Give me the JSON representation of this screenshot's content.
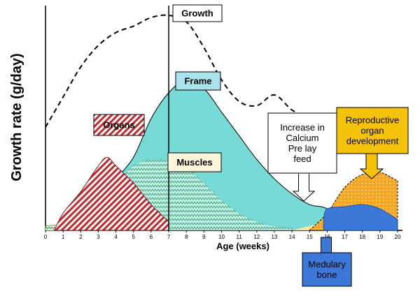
{
  "chart_data": {
    "type": "area",
    "title": "",
    "xlabel": "Age (weeks)",
    "ylabel": "Growth rate (g/day)",
    "x_ticks": [
      "0",
      "1",
      "2",
      "3",
      "4",
      "5",
      "6",
      "7",
      "8",
      "9",
      "10",
      "11",
      "12",
      "13",
      "14",
      "15",
      "16",
      "17",
      "18",
      "19",
      "20"
    ],
    "grid": false,
    "series": [
      {
        "name": "Growth",
        "style": "dashed-line",
        "color": "#000000",
        "points": [
          [
            0,
            0.48
          ],
          [
            1,
            0.62
          ],
          [
            2,
            0.76
          ],
          [
            3,
            0.86
          ],
          [
            4,
            0.92
          ],
          [
            5,
            0.95
          ],
          [
            6,
            0.99
          ],
          [
            7,
            1.0
          ],
          [
            8,
            0.97
          ],
          [
            9,
            0.85
          ],
          [
            10,
            0.7
          ],
          [
            11,
            0.6
          ],
          [
            12,
            0.58
          ],
          [
            13,
            0.63
          ],
          [
            14,
            0.56
          ],
          [
            15,
            0.52
          ],
          [
            16,
            0.5
          ],
          [
            17,
            0.49
          ],
          [
            18,
            0.5
          ],
          [
            19,
            0.51
          ],
          [
            20,
            0.52
          ]
        ]
      },
      {
        "name": "Frame",
        "style": "filled-area",
        "color": "#5fd3cf",
        "points": [
          [
            4,
            0.24
          ],
          [
            5,
            0.34
          ],
          [
            6,
            0.52
          ],
          [
            7,
            0.64
          ],
          [
            8,
            0.7
          ],
          [
            9,
            0.66
          ],
          [
            10,
            0.55
          ],
          [
            11,
            0.44
          ],
          [
            12,
            0.33
          ],
          [
            13,
            0.24
          ],
          [
            14,
            0.17
          ],
          [
            15,
            0.12
          ],
          [
            16,
            0.1
          ],
          [
            17,
            0.02
          ]
        ]
      },
      {
        "name": "Organs",
        "style": "red-hatched-area",
        "color": "#c0282d",
        "points": [
          [
            0.5,
            0.0
          ],
          [
            1,
            0.08
          ],
          [
            2,
            0.18
          ],
          [
            3,
            0.3
          ],
          [
            3.5,
            0.34
          ],
          [
            4,
            0.3
          ],
          [
            5,
            0.22
          ],
          [
            6,
            0.12
          ],
          [
            7,
            0.04
          ]
        ]
      },
      {
        "name": "Muscles",
        "style": "green-zigzag-area",
        "color": "#2e8b2e",
        "points": [
          [
            0,
            0.02
          ],
          [
            1,
            0.03
          ],
          [
            2,
            0.06
          ],
          [
            3,
            0.14
          ],
          [
            4,
            0.22
          ],
          [
            5,
            0.3
          ],
          [
            6,
            0.33
          ],
          [
            7,
            0.32
          ],
          [
            8,
            0.29
          ],
          [
            9,
            0.22
          ],
          [
            10,
            0.14
          ],
          [
            11,
            0.08
          ],
          [
            12,
            0.04
          ],
          [
            13,
            0.02
          ],
          [
            14,
            0.01
          ]
        ]
      },
      {
        "name": "Reproductive organ development",
        "style": "orange-dotted-area",
        "color": "#f5a623",
        "points": [
          [
            15,
            0.0
          ],
          [
            16,
            0.08
          ],
          [
            17,
            0.2
          ],
          [
            18,
            0.26
          ],
          [
            19,
            0.27
          ],
          [
            20,
            0.23
          ]
        ]
      },
      {
        "name": "Medulary bone",
        "style": "filled-area",
        "color": "#3b78d8",
        "points": [
          [
            15.8,
            0.05
          ],
          [
            16,
            0.1
          ],
          [
            17,
            0.11
          ],
          [
            18,
            0.12
          ],
          [
            19,
            0.1
          ],
          [
            20,
            0.05
          ]
        ]
      }
    ],
    "annotations": [
      {
        "text": "Increase in Calcium Pre lay feed",
        "at_week": 16,
        "arrow": "down"
      },
      {
        "text": "Reproductive organ development",
        "at_week": 18,
        "arrow": "down"
      },
      {
        "text": "Medulary bone",
        "at_week": 16.5,
        "arrow": "up"
      }
    ],
    "vertical_marker_week": 7,
    "label_texts": {
      "growth": "Growth",
      "frame": "Frame",
      "organs": "Organs",
      "muscles": "Muscles",
      "calcium": [
        "Increase in",
        "Calcium",
        "Pre lay",
        "feed"
      ],
      "repro": [
        "Reproductive",
        "organ",
        "development"
      ],
      "medulary": [
        "Medulary",
        "bone"
      ]
    }
  }
}
